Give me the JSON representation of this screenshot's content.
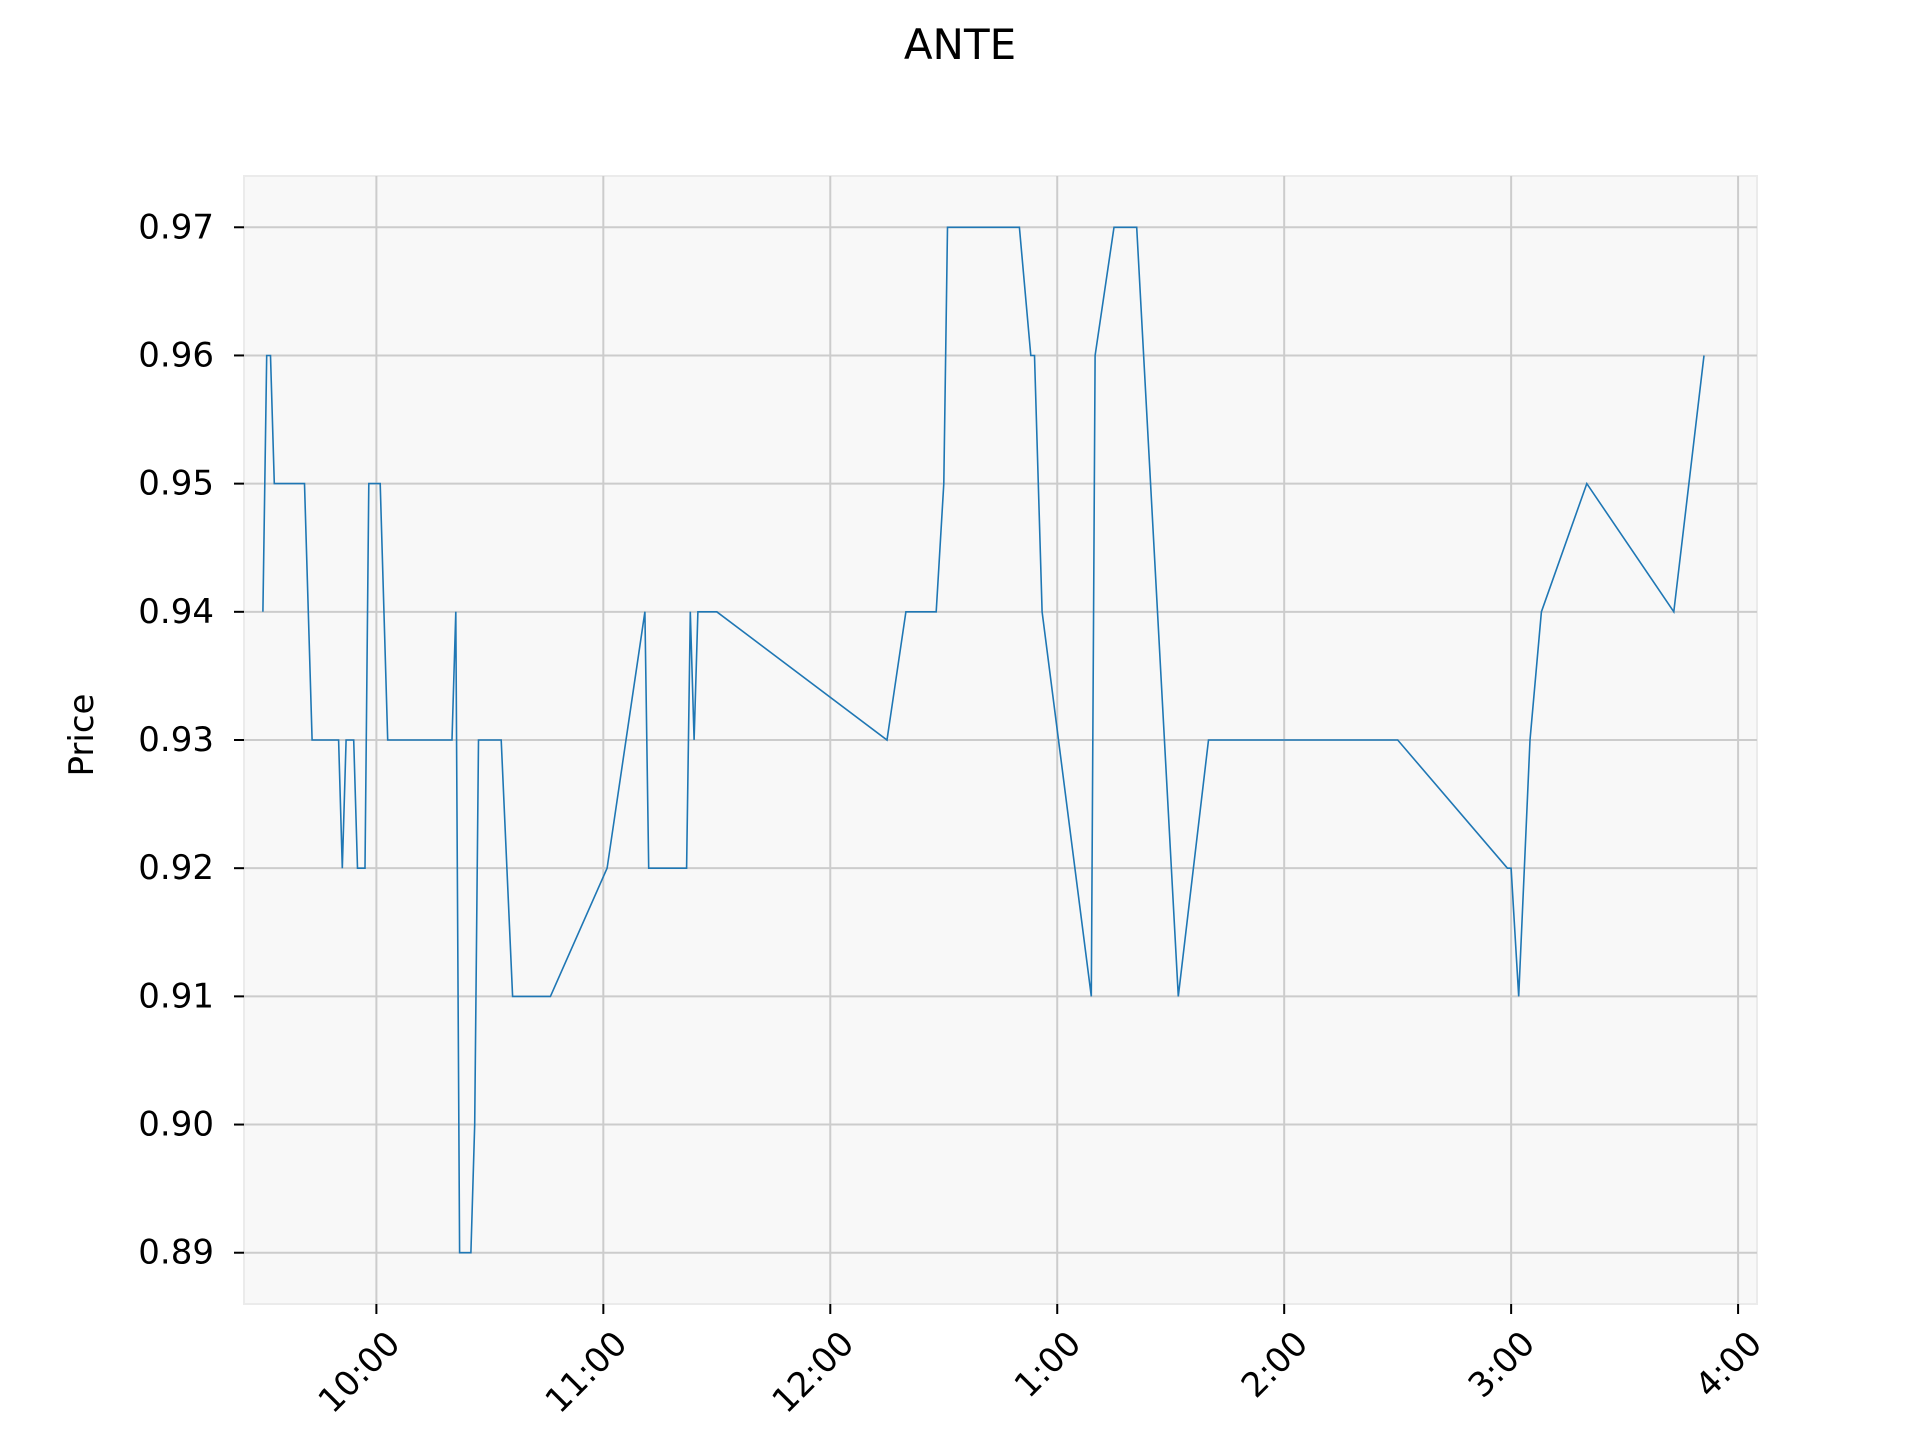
{
  "chart_data": {
    "type": "line",
    "title": "ANTE",
    "xlabel": "",
    "ylabel": "Price",
    "grid": true,
    "x_ticks": [
      "10:00",
      "11:00",
      "12:00",
      "1:00",
      "2:00",
      "3:00",
      "4:00"
    ],
    "y_ticks": [
      "0.89",
      "0.90",
      "0.91",
      "0.92",
      "0.93",
      "0.94",
      "0.95",
      "0.96",
      "0.97"
    ],
    "xlim": [
      "09:25",
      "16:05"
    ],
    "ylim": [
      0.886,
      0.974
    ],
    "colors": {
      "line": "#1f77b4",
      "plot_bg": "#f8f8f8",
      "grid": "#cccccc"
    },
    "series": [
      {
        "points": [
          [
            "09:30",
            0.94
          ],
          [
            "09:31",
            0.96
          ],
          [
            "09:32",
            0.96
          ],
          [
            "09:33",
            0.95
          ],
          [
            "09:40",
            0.95
          ],
          [
            "09:41",
            0.95
          ],
          [
            "09:43",
            0.93
          ],
          [
            "09:50",
            0.93
          ],
          [
            "09:51",
            0.92
          ],
          [
            "09:52",
            0.93
          ],
          [
            "09:54",
            0.93
          ],
          [
            "09:55",
            0.92
          ],
          [
            "09:57",
            0.92
          ],
          [
            "09:58",
            0.95
          ],
          [
            "10:01",
            0.95
          ],
          [
            "10:03",
            0.93
          ],
          [
            "10:10",
            0.93
          ],
          [
            "10:19",
            0.93
          ],
          [
            "10:20",
            0.93
          ],
          [
            "10:21",
            0.94
          ],
          [
            "10:22",
            0.89
          ],
          [
            "10:25",
            0.89
          ],
          [
            "10:26",
            0.9
          ],
          [
            "10:27",
            0.93
          ],
          [
            "10:33",
            0.93
          ],
          [
            "10:36",
            0.91
          ],
          [
            "10:46",
            0.91
          ],
          [
            "11:01",
            0.92
          ],
          [
            "11:11",
            0.94
          ],
          [
            "11:12",
            0.92
          ],
          [
            "11:22",
            0.92
          ],
          [
            "11:23",
            0.94
          ],
          [
            "11:24",
            0.93
          ],
          [
            "11:25",
            0.94
          ],
          [
            "11:30",
            0.94
          ],
          [
            "12:15",
            0.93
          ],
          [
            "12:20",
            0.94
          ],
          [
            "12:28",
            0.94
          ],
          [
            "12:30",
            0.95
          ],
          [
            "12:31",
            0.97
          ],
          [
            "12:50",
            0.97
          ],
          [
            "12:53",
            0.96
          ],
          [
            "12:54",
            0.96
          ],
          [
            "12:56",
            0.94
          ],
          [
            "13:09",
            0.91
          ],
          [
            "13:10",
            0.96
          ],
          [
            "13:15",
            0.97
          ],
          [
            "13:21",
            0.97
          ],
          [
            "13:32",
            0.91
          ],
          [
            "13:40",
            0.93
          ],
          [
            "14:30",
            0.93
          ],
          [
            "14:59",
            0.92
          ],
          [
            "15:00",
            0.92
          ],
          [
            "15:02",
            0.91
          ],
          [
            "15:05",
            0.93
          ],
          [
            "15:08",
            0.94
          ],
          [
            "15:20",
            0.95
          ],
          [
            "15:43",
            0.94
          ],
          [
            "15:51",
            0.96
          ]
        ]
      }
    ]
  }
}
